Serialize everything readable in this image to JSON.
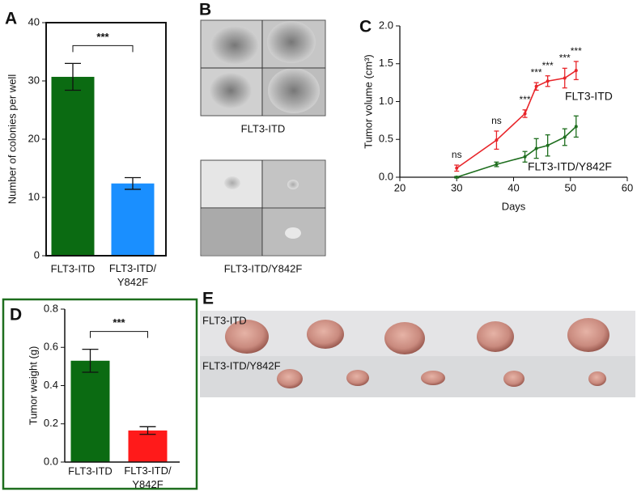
{
  "chart_data": [
    {
      "type": "bar",
      "panel_label": "A",
      "categories": [
        "FLT3-ITD",
        "FLT3-ITD/Y842F"
      ],
      "values": [
        30.7,
        12.4
      ],
      "errors": [
        2.3,
        1.0
      ],
      "colors": [
        "#0b6b12",
        "#1a8fff"
      ],
      "ylabel": "Number of colonies per well",
      "ylim": [
        0,
        40
      ],
      "yticks": [
        0,
        10,
        20,
        30,
        40
      ],
      "significance": "***"
    },
    {
      "type": "line",
      "panel_label": "C",
      "x": [
        30,
        37,
        42,
        44,
        46,
        49,
        51
      ],
      "series": [
        {
          "name": "FLT3-ITD",
          "color": "#e8252a",
          "values": [
            0.12,
            0.49,
            0.84,
            1.2,
            1.27,
            1.31,
            1.41
          ],
          "errors": [
            0.04,
            0.12,
            0.05,
            0.05,
            0.07,
            0.13,
            0.12
          ]
        },
        {
          "name": "FLT3-ITD/Y842F",
          "color": "#1e6e1e",
          "values": [
            0.0,
            0.17,
            0.27,
            0.38,
            0.42,
            0.53,
            0.67
          ],
          "errors": [
            0.01,
            0.03,
            0.07,
            0.13,
            0.14,
            0.11,
            0.14
          ]
        }
      ],
      "significance": [
        "ns",
        "ns",
        "***",
        "***",
        "***",
        "***",
        "***"
      ],
      "xlabel": "Days",
      "ylabel": "Tumor volume (cm³)",
      "xlim": [
        20,
        60
      ],
      "xticks": [
        20,
        30,
        40,
        50,
        60
      ],
      "ylim": [
        0,
        2
      ],
      "yticks": [
        {
          "value": 0,
          "label": "0.0"
        },
        0.5,
        {
          "value": 1,
          "label": "1.0"
        },
        1.5,
        {
          "value": 2,
          "label": "2.0"
        }
      ]
    },
    {
      "type": "bar",
      "panel_label": "D",
      "categories": [
        "FLT3-ITD",
        "FLT3-ITD/Y842F"
      ],
      "values": [
        0.53,
        0.165
      ],
      "errors": [
        0.06,
        0.02
      ],
      "colors": [
        "#0b6b12",
        "#ff1a1a"
      ],
      "ylabel": "Tumor weight (g)",
      "ylim": [
        0,
        0.8
      ],
      "yticks": [
        {
          "value": 0,
          "label": "0.0"
        },
        0.2,
        0.4,
        0.6,
        0.8
      ],
      "significance": "***"
    }
  ],
  "image_panels": [
    {
      "panel_label": "B",
      "captions": [
        "FLT3-ITD",
        "FLT3-ITD/Y842F"
      ]
    },
    {
      "panel_label": "E",
      "row_labels": [
        "FLT3-ITD",
        "FLT3-ITD/Y842F"
      ]
    }
  ]
}
